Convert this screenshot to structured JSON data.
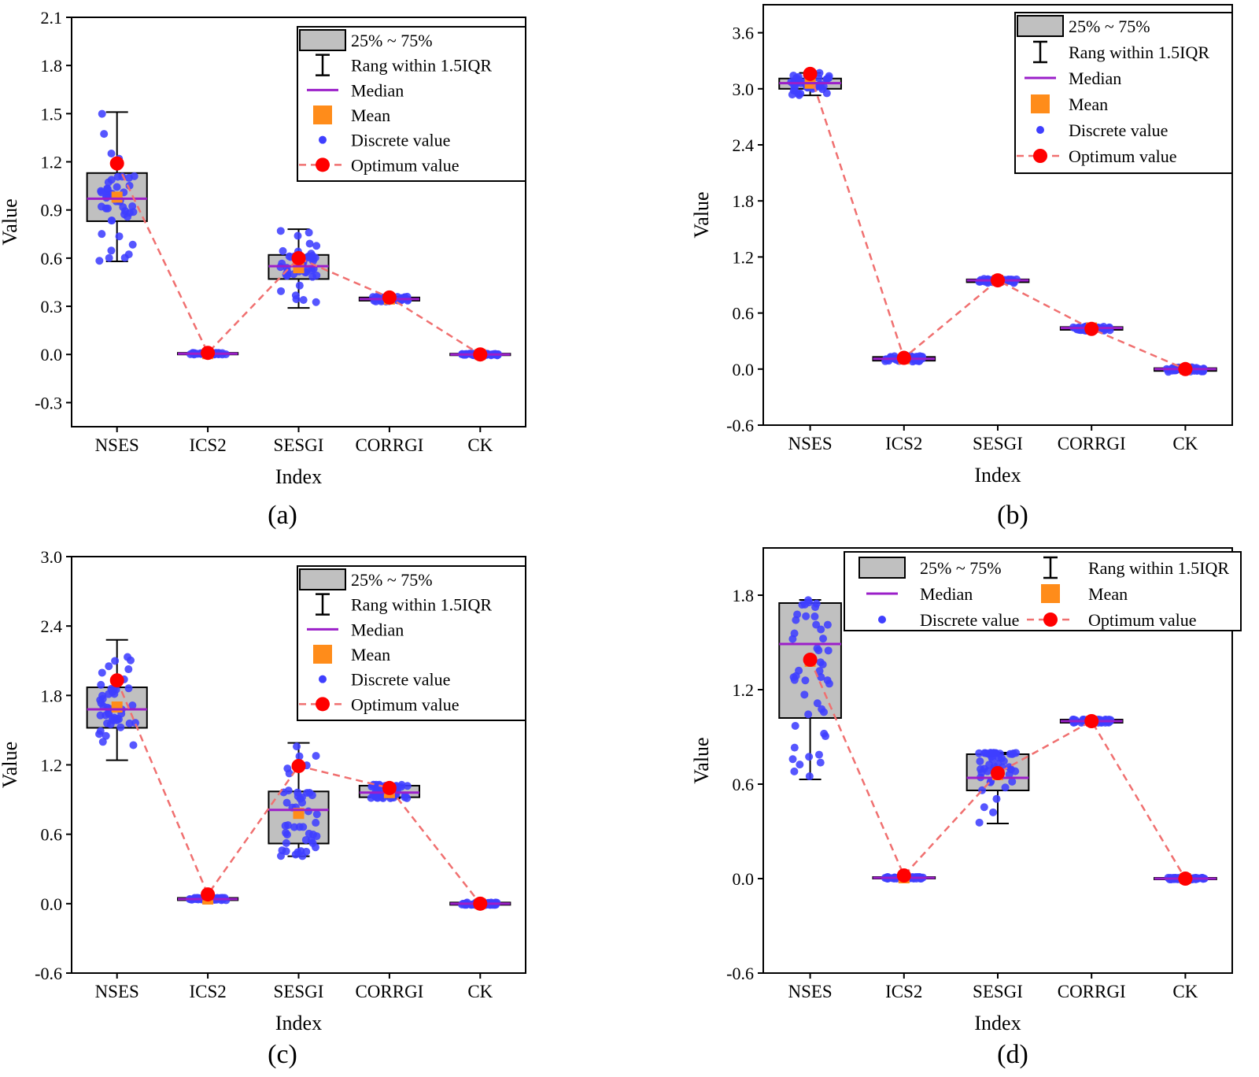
{
  "figure": {
    "colors": {
      "box_fill": "#c0c0c0",
      "median": "#9b1fc9",
      "mean": "#ff8c1a",
      "discrete": "#3f3fff",
      "optimum": "#ff0000",
      "optimum_line": "#f07070"
    },
    "legend_labels": {
      "box": "25% ~ 75%",
      "range": "Rang within 1.5IQR",
      "median": "Median",
      "mean": "Mean",
      "discrete": "Discrete value",
      "optimum": "Optimum value"
    }
  },
  "chart_data": [
    {
      "type": "box",
      "panel_label": "(a)",
      "xlabel": "Index",
      "ylabel": "Value",
      "categories": [
        "NSES",
        "ICS2",
        "SESGI",
        "CORRGI",
        "CK"
      ],
      "ylim": [
        -0.45,
        2.1
      ],
      "yticks": [
        -0.3,
        0.0,
        0.3,
        0.6,
        0.9,
        1.2,
        1.5,
        1.8,
        2.1
      ],
      "ytick_labels": [
        "-0.3",
        "0.0",
        "0.3",
        "0.6",
        "0.9",
        "1.2",
        "1.5",
        "1.8",
        "2.1"
      ],
      "legend": "right",
      "boxes": [
        {
          "q1": 0.83,
          "median": 0.97,
          "q3": 1.13,
          "whisker_low": 0.58,
          "whisker_high": 1.51,
          "mean": 0.98
        },
        {
          "q1": 0.0,
          "median": 0.005,
          "q3": 0.01,
          "whisker_low": 0.0,
          "whisker_high": 0.01,
          "mean": 0.005
        },
        {
          "q1": 0.47,
          "median": 0.55,
          "q3": 0.62,
          "whisker_low": 0.29,
          "whisker_high": 0.78,
          "mean": 0.54
        },
        {
          "q1": 0.335,
          "median": 0.345,
          "q3": 0.355,
          "whisker_low": 0.33,
          "whisker_high": 0.36,
          "mean": 0.345
        },
        {
          "q1": -0.005,
          "median": 0.0,
          "q3": 0.005,
          "whisker_low": -0.005,
          "whisker_high": 0.005,
          "mean": 0.0
        }
      ],
      "optimum": [
        1.19,
        0.01,
        0.6,
        0.355,
        0.0
      ]
    },
    {
      "type": "box",
      "panel_label": "(b)",
      "xlabel": "Index",
      "ylabel": "Value",
      "categories": [
        "NSES",
        "ICS2",
        "SESGI",
        "CORRGI",
        "CK"
      ],
      "ylim": [
        -0.6,
        3.9
      ],
      "yticks": [
        -0.6,
        0.0,
        0.6,
        1.2,
        1.8,
        2.4,
        3.0,
        3.6
      ],
      "ytick_labels": [
        "-0.6",
        "0.0",
        "0.6",
        "1.2",
        "1.8",
        "2.4",
        "3.0",
        "3.6"
      ],
      "legend": "right",
      "boxes": [
        {
          "q1": 3.0,
          "median": 3.06,
          "q3": 3.11,
          "whisker_low": 2.93,
          "whisker_high": 3.17,
          "mean": 3.06
        },
        {
          "q1": 0.09,
          "median": 0.11,
          "q3": 0.13,
          "whisker_low": 0.08,
          "whisker_high": 0.14,
          "mean": 0.11
        },
        {
          "q1": 0.93,
          "median": 0.95,
          "q3": 0.96,
          "whisker_low": 0.92,
          "whisker_high": 0.97,
          "mean": 0.95
        },
        {
          "q1": 0.42,
          "median": 0.44,
          "q3": 0.45,
          "whisker_low": 0.41,
          "whisker_high": 0.46,
          "mean": 0.44
        },
        {
          "q1": -0.02,
          "median": 0.0,
          "q3": 0.01,
          "whisker_low": -0.03,
          "whisker_high": 0.02,
          "mean": 0.0
        }
      ],
      "optimum": [
        3.16,
        0.12,
        0.95,
        0.43,
        0.0
      ]
    },
    {
      "type": "box",
      "panel_label": "(c)",
      "xlabel": "Index",
      "ylabel": "Value",
      "categories": [
        "NSES",
        "ICS2",
        "SESGI",
        "CORRGI",
        "CK"
      ],
      "ylim": [
        -0.6,
        3.0
      ],
      "yticks": [
        -0.6,
        0.0,
        0.6,
        1.2,
        1.8,
        2.4,
        3.0
      ],
      "ytick_labels": [
        "-0.6",
        "0.0",
        "0.6",
        "1.2",
        "1.8",
        "2.4",
        "3.0"
      ],
      "legend": "right",
      "boxes": [
        {
          "q1": 1.52,
          "median": 1.68,
          "q3": 1.87,
          "whisker_low": 1.24,
          "whisker_high": 2.28,
          "mean": 1.7
        },
        {
          "q1": 0.03,
          "median": 0.04,
          "q3": 0.05,
          "whisker_low": 0.03,
          "whisker_high": 0.05,
          "mean": 0.04
        },
        {
          "q1": 0.52,
          "median": 0.81,
          "q3": 0.97,
          "whisker_low": 0.41,
          "whisker_high": 1.39,
          "mean": 0.78
        },
        {
          "q1": 0.92,
          "median": 0.96,
          "q3": 1.02,
          "whisker_low": 0.91,
          "whisker_high": 1.03,
          "mean": 0.96
        },
        {
          "q1": -0.01,
          "median": 0.0,
          "q3": 0.01,
          "whisker_low": -0.01,
          "whisker_high": 0.01,
          "mean": 0.0
        }
      ],
      "optimum": [
        1.93,
        0.08,
        1.19,
        1.0,
        0.0
      ]
    },
    {
      "type": "box",
      "panel_label": "(d)",
      "xlabel": "Index",
      "ylabel": "Value",
      "categories": [
        "NSES",
        "ICS2",
        "SESGI",
        "CORRGI",
        "CK"
      ],
      "ylim": [
        -0.6,
        2.1
      ],
      "yticks": [
        -0.6,
        0.0,
        0.6,
        1.2,
        1.8
      ],
      "ytick_labels": [
        "-0.6",
        "0.0",
        "0.6",
        "1.2",
        "1.8"
      ],
      "legend": "top",
      "boxes": [
        {
          "q1": 1.02,
          "median": 1.49,
          "q3": 1.75,
          "whisker_low": 0.63,
          "whisker_high": 1.77,
          "mean": 1.38
        },
        {
          "q1": 0.0,
          "median": 0.005,
          "q3": 0.01,
          "whisker_low": 0.0,
          "whisker_high": 0.01,
          "mean": 0.005
        },
        {
          "q1": 0.56,
          "median": 0.64,
          "q3": 0.79,
          "whisker_low": 0.35,
          "whisker_high": 0.8,
          "mean": 0.66
        },
        {
          "q1": 0.99,
          "median": 1.0,
          "q3": 1.01,
          "whisker_low": 0.99,
          "whisker_high": 1.01,
          "mean": 1.0
        },
        {
          "q1": -0.005,
          "median": 0.0,
          "q3": 0.005,
          "whisker_low": -0.005,
          "whisker_high": 0.005,
          "mean": 0.0
        }
      ],
      "optimum": [
        1.39,
        0.02,
        0.67,
        1.0,
        0.0
      ]
    }
  ]
}
